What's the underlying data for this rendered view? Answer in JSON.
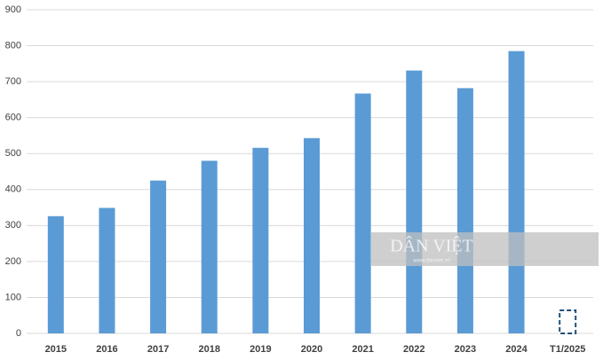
{
  "chart_data": {
    "type": "bar",
    "categories": [
      "2015",
      "2016",
      "2017",
      "2018",
      "2019",
      "2020",
      "2021",
      "2022",
      "2023",
      "2024",
      "T1/2025"
    ],
    "values": [
      326,
      349,
      425,
      480,
      516,
      543,
      667,
      731,
      682,
      785,
      64
    ],
    "colors": [
      "#5b9bd5",
      "#5b9bd5",
      "#5b9bd5",
      "#5b9bd5",
      "#5b9bd5",
      "#5b9bd5",
      "#5b9bd5",
      "#5b9bd5",
      "#5b9bd5",
      "#5b9bd5",
      "none"
    ],
    "ylim": [
      0,
      900
    ],
    "yticks": [
      0,
      100,
      200,
      300,
      400,
      500,
      600,
      700,
      800,
      900
    ],
    "grid": true,
    "watermark": {
      "title": "DÂN VIỆT",
      "url": "www.danviet.vn"
    }
  }
}
